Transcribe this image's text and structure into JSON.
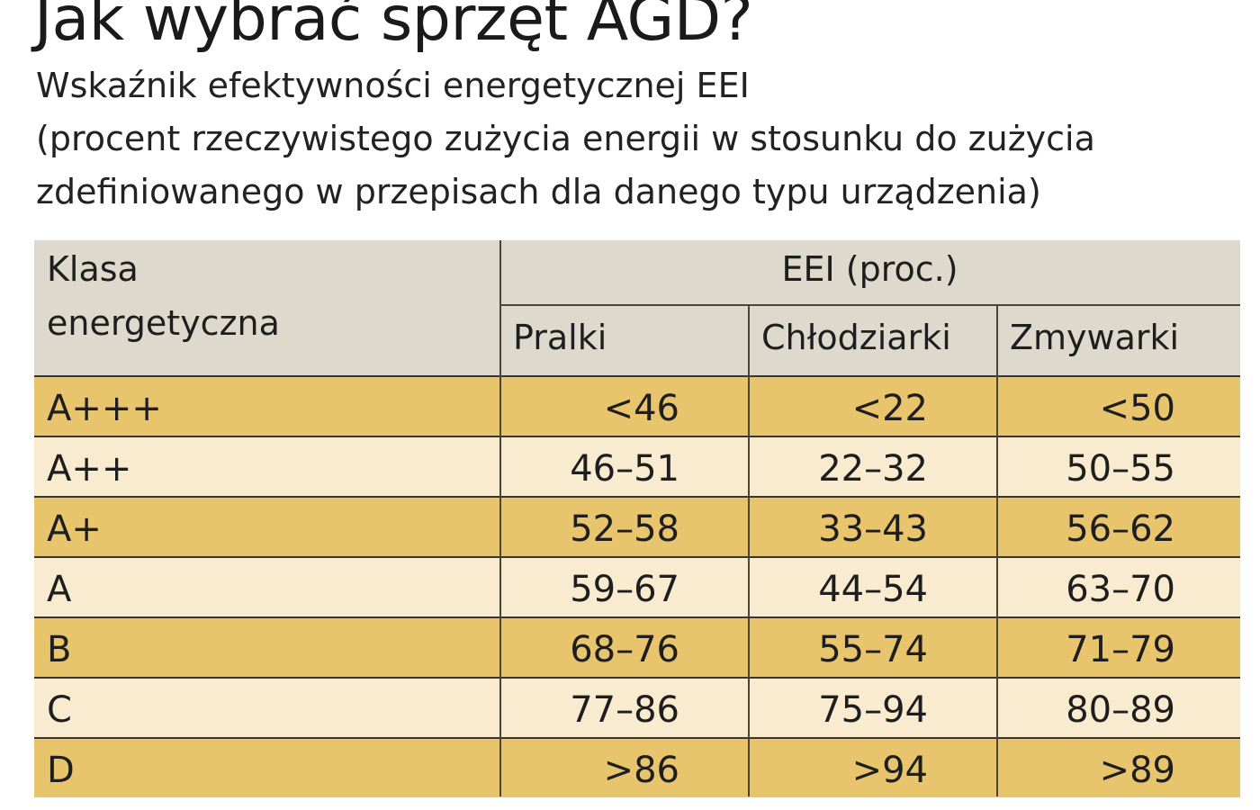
{
  "title": "Jak wybrać sprzęt AGD?",
  "subtitle_lines": [
    "Wskaźnik efektywności energetycznej EEI",
    "(procent rzeczywistego zużycia energii w stosunku do zużycia",
    "zdefiniowanego w przepisach dla danego typu urządzenia)"
  ],
  "chart_data": {
    "type": "table",
    "row_header": [
      "Klasa",
      "energetyczna"
    ],
    "group_header": "EEI (proc.)",
    "columns": [
      "Pralki",
      "Chłodziarki",
      "Zmywarki"
    ],
    "rows": [
      {
        "label": "A+++",
        "values": [
          "<46",
          "<22",
          "<50"
        ]
      },
      {
        "label": "A++",
        "values": [
          "46–51",
          "22–32",
          "50–55"
        ]
      },
      {
        "label": "A+",
        "values": [
          "52–58",
          "33–43",
          "56–62"
        ]
      },
      {
        "label": "A",
        "values": [
          "59–67",
          "44–54",
          "63–70"
        ]
      },
      {
        "label": "B",
        "values": [
          "68–76",
          "55–74",
          "71–79"
        ]
      },
      {
        "label": "C",
        "values": [
          "77–86",
          "75–94",
          "80–89"
        ]
      },
      {
        "label": "D",
        "values": [
          ">86",
          ">94",
          ">89"
        ]
      }
    ],
    "colors": {
      "header_bg": "#ddd9cc",
      "row_dark": "#e8c46d",
      "row_light": "#f8ebd0",
      "grid": "#4a4436"
    }
  }
}
